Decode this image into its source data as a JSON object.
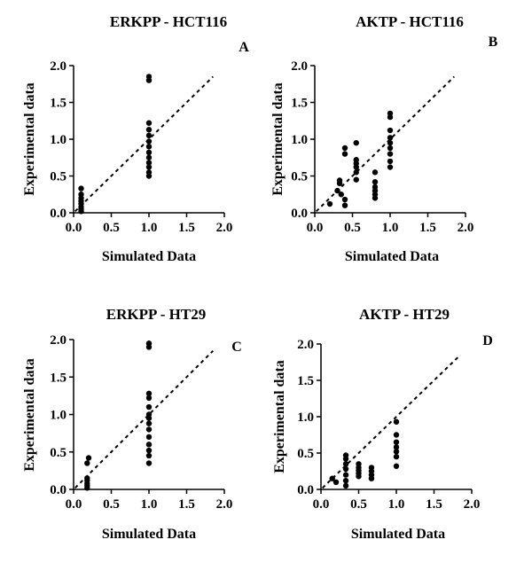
{
  "chart_data": [
    {
      "type": "scatter",
      "panel_letter": "A",
      "title": "ERKPP - HCT116",
      "xlabel": "Simulated Data",
      "ylabel": "Experimental data",
      "xlim": [
        0,
        2
      ],
      "ylim": [
        0,
        2
      ],
      "xticks": [
        "0.0",
        "0.5",
        "1.0",
        "1.5",
        "2.0"
      ],
      "yticks": [
        "0.0",
        "0.5",
        "1.0",
        "1.5",
        "2.0"
      ],
      "grid": false,
      "reference_line": "y = x (dashed)",
      "points": [
        [
          0.1,
          0.02
        ],
        [
          0.1,
          0.05
        ],
        [
          0.1,
          0.08
        ],
        [
          0.1,
          0.12
        ],
        [
          0.1,
          0.16
        ],
        [
          0.1,
          0.2
        ],
        [
          0.1,
          0.25
        ],
        [
          0.1,
          0.33
        ],
        [
          1.0,
          0.5
        ],
        [
          1.0,
          0.55
        ],
        [
          1.0,
          0.62
        ],
        [
          1.0,
          0.68
        ],
        [
          1.0,
          0.75
        ],
        [
          1.0,
          0.82
        ],
        [
          1.0,
          0.9
        ],
        [
          1.0,
          0.97
        ],
        [
          1.0,
          1.05
        ],
        [
          1.0,
          1.13
        ],
        [
          1.0,
          1.22
        ],
        [
          1.0,
          1.8
        ],
        [
          1.0,
          1.85
        ]
      ]
    },
    {
      "type": "scatter",
      "panel_letter": "B",
      "title": "AKTP - HCT116",
      "xlabel": "Simulated Data",
      "ylabel": "Experimental data",
      "xlim": [
        0,
        2
      ],
      "ylim": [
        0,
        2
      ],
      "xticks": [
        "0.0",
        "0.5",
        "1.0",
        "1.5",
        "2.0"
      ],
      "yticks": [
        "0.0",
        "0.5",
        "1.0",
        "1.5",
        "2.0"
      ],
      "grid": false,
      "reference_line": "y = x (dashed)",
      "points": [
        [
          0.2,
          0.12
        ],
        [
          0.3,
          0.3
        ],
        [
          0.33,
          0.4
        ],
        [
          0.33,
          0.44
        ],
        [
          0.35,
          0.25
        ],
        [
          0.4,
          0.1
        ],
        [
          0.4,
          0.18
        ],
        [
          0.4,
          0.8
        ],
        [
          0.4,
          0.88
        ],
        [
          0.55,
          0.45
        ],
        [
          0.55,
          0.55
        ],
        [
          0.55,
          0.62
        ],
        [
          0.55,
          0.67
        ],
        [
          0.55,
          0.72
        ],
        [
          0.55,
          0.95
        ],
        [
          0.8,
          0.2
        ],
        [
          0.8,
          0.25
        ],
        [
          0.8,
          0.3
        ],
        [
          0.8,
          0.35
        ],
        [
          0.8,
          0.42
        ],
        [
          0.8,
          0.55
        ],
        [
          1.0,
          0.62
        ],
        [
          1.0,
          0.7
        ],
        [
          1.0,
          0.8
        ],
        [
          1.0,
          0.88
        ],
        [
          1.0,
          0.95
        ],
        [
          1.0,
          1.02
        ],
        [
          1.0,
          1.12
        ],
        [
          1.0,
          1.3
        ],
        [
          1.0,
          1.35
        ]
      ]
    },
    {
      "type": "scatter",
      "panel_letter": "C",
      "title": "ERKPP - HT29",
      "xlabel": "Simulated Data",
      "ylabel": "Experimental data",
      "xlim": [
        0,
        2
      ],
      "ylim": [
        0,
        2
      ],
      "xticks": [
        "0.0",
        "0.5",
        "1.0",
        "1.5",
        "2.0"
      ],
      "yticks": [
        "0.0",
        "0.5",
        "1.0",
        "1.5",
        "2.0"
      ],
      "grid": false,
      "reference_line": "y = x (dashed)",
      "points": [
        [
          0.18,
          0.02
        ],
        [
          0.18,
          0.05
        ],
        [
          0.18,
          0.08
        ],
        [
          0.18,
          0.12
        ],
        [
          0.18,
          0.15
        ],
        [
          0.18,
          0.35
        ],
        [
          0.2,
          0.42
        ],
        [
          1.0,
          0.35
        ],
        [
          1.0,
          0.45
        ],
        [
          1.0,
          0.52
        ],
        [
          1.0,
          0.6
        ],
        [
          1.0,
          0.7
        ],
        [
          1.0,
          0.8
        ],
        [
          1.0,
          0.88
        ],
        [
          1.0,
          0.95
        ],
        [
          1.0,
          1.0
        ],
        [
          1.0,
          1.1
        ],
        [
          1.0,
          1.22
        ],
        [
          1.0,
          1.28
        ],
        [
          1.0,
          1.9
        ],
        [
          1.0,
          1.95
        ]
      ]
    },
    {
      "type": "scatter",
      "panel_letter": "D",
      "title": "AKTP - HT29",
      "xlabel": "Simulated Data",
      "ylabel": "Experimental data",
      "xlim": [
        0,
        2
      ],
      "ylim": [
        0,
        2
      ],
      "xticks": [
        "0.0",
        "0.5",
        "1.0",
        "1.5",
        "2.0"
      ],
      "yticks": [
        "0.0",
        "0.5",
        "1.0",
        "1.5",
        "2.0"
      ],
      "grid": false,
      "reference_line": "y = x (dashed)",
      "points": [
        [
          0.15,
          0.15
        ],
        [
          0.2,
          0.1
        ],
        [
          0.33,
          0.05
        ],
        [
          0.33,
          0.12
        ],
        [
          0.33,
          0.2
        ],
        [
          0.33,
          0.28
        ],
        [
          0.33,
          0.35
        ],
        [
          0.33,
          0.42
        ],
        [
          0.33,
          0.47
        ],
        [
          0.5,
          0.18
        ],
        [
          0.5,
          0.22
        ],
        [
          0.5,
          0.26
        ],
        [
          0.5,
          0.3
        ],
        [
          0.5,
          0.35
        ],
        [
          0.67,
          0.15
        ],
        [
          0.67,
          0.2
        ],
        [
          0.67,
          0.25
        ],
        [
          0.67,
          0.3
        ],
        [
          1.0,
          0.32
        ],
        [
          1.0,
          0.45
        ],
        [
          1.0,
          0.52
        ],
        [
          1.0,
          0.58
        ],
        [
          1.0,
          0.65
        ],
        [
          1.0,
          0.75
        ],
        [
          1.0,
          0.93
        ]
      ]
    }
  ]
}
